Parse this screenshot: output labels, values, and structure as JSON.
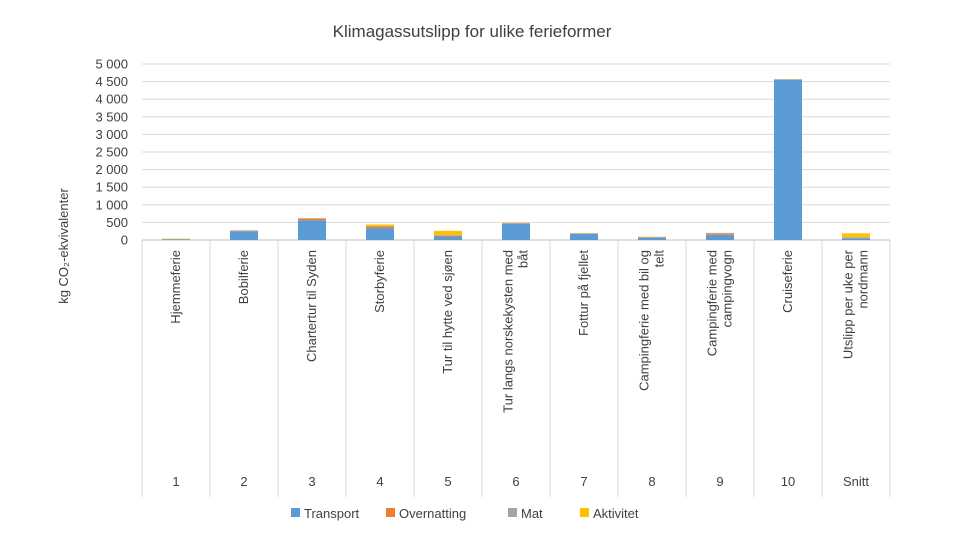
{
  "chart_data": {
    "type": "bar",
    "stacked": true,
    "title": "Klimagassutslipp for ulike ferieformer",
    "ylabel": "kg CO₂-ekvivalenter",
    "xlabel": "",
    "ylim": [
      0,
      5000
    ],
    "yticks": [
      0,
      500,
      1000,
      1500,
      2000,
      2500,
      3000,
      3500,
      4000,
      4500,
      5000
    ],
    "ytick_labels": [
      "0",
      "500",
      "1 000",
      "1 500",
      "2 000",
      "2 500",
      "3 000",
      "3 500",
      "4 000",
      "4 500",
      "5 000"
    ],
    "grid": true,
    "legend_position": "bottom",
    "categories": [
      {
        "number": "1",
        "lines": [
          "Hjemmeferie"
        ]
      },
      {
        "number": "2",
        "lines": [
          "Bobilferie"
        ]
      },
      {
        "number": "3",
        "lines": [
          "Chartertur til Syden"
        ]
      },
      {
        "number": "4",
        "lines": [
          "Storbyferie"
        ]
      },
      {
        "number": "5",
        "lines": [
          "Tur til hytte ved sjøen"
        ]
      },
      {
        "number": "6",
        "lines": [
          "Tur langs norskekysten med",
          "båt"
        ]
      },
      {
        "number": "7",
        "lines": [
          "Fottur på fjellet"
        ]
      },
      {
        "number": "8",
        "lines": [
          "Campingferie med bil og",
          "telt"
        ]
      },
      {
        "number": "9",
        "lines": [
          "Campingferie med",
          "campingvogn"
        ]
      },
      {
        "number": "10",
        "lines": [
          "Cruiseferie"
        ]
      },
      {
        "number": "Snitt",
        "lines": [
          "Utslipp per uke per",
          "nordmann"
        ]
      }
    ],
    "series": [
      {
        "name": "Transport",
        "color": "#5b9bd5",
        "values": [
          10,
          250,
          560,
          330,
          100,
          460,
          170,
          60,
          150,
          4550,
          50
        ]
      },
      {
        "name": "Overnatting",
        "color": "#ed7d31",
        "values": [
          0,
          10,
          40,
          50,
          20,
          10,
          0,
          10,
          30,
          0,
          10
        ]
      },
      {
        "name": "Mat",
        "color": "#a5a5a5",
        "values": [
          20,
          15,
          20,
          20,
          20,
          15,
          15,
          20,
          20,
          20,
          20
        ]
      },
      {
        "name": "Aktivitet",
        "color": "#ffc000",
        "values": [
          10,
          5,
          5,
          40,
          120,
          5,
          10,
          5,
          5,
          5,
          110
        ]
      }
    ]
  }
}
